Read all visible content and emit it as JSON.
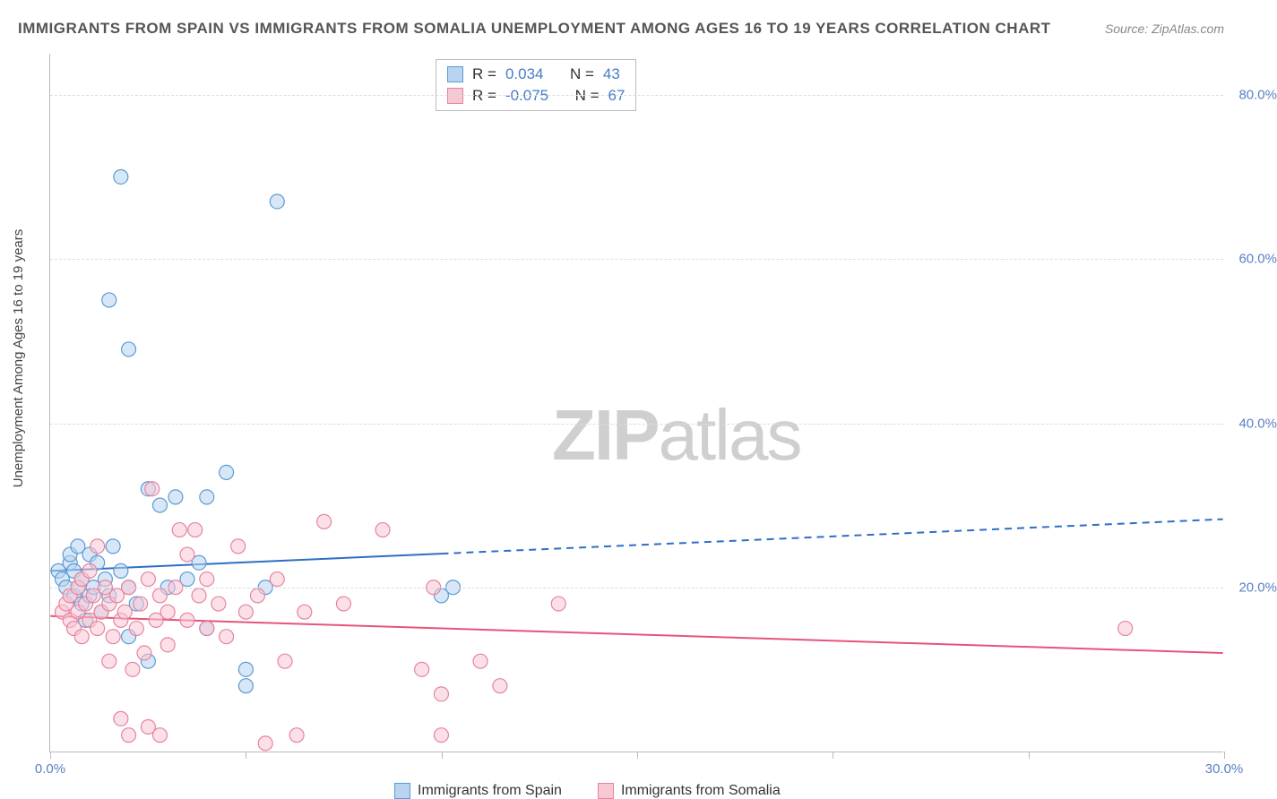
{
  "title": "IMMIGRANTS FROM SPAIN VS IMMIGRANTS FROM SOMALIA UNEMPLOYMENT AMONG AGES 16 TO 19 YEARS CORRELATION CHART",
  "source": "Source: ZipAtlas.com",
  "watermark_zip": "ZIP",
  "watermark_atlas": "atlas",
  "y_axis_label": "Unemployment Among Ages 16 to 19 years",
  "chart": {
    "type": "scatter",
    "xlim": [
      0,
      30
    ],
    "ylim": [
      0,
      85
    ],
    "x_ticks": [
      0,
      5,
      10,
      15,
      20,
      25,
      30
    ],
    "x_tick_labels": [
      "0.0%",
      "",
      "",
      "",
      "",
      "",
      "30.0%"
    ],
    "y_ticks": [
      20,
      40,
      60,
      80
    ],
    "y_tick_labels": [
      "20.0%",
      "40.0%",
      "60.0%",
      "80.0%"
    ],
    "series": [
      {
        "name": "Immigrants from Spain",
        "color_fill": "#b8d4f0",
        "color_stroke": "#5a9bd4",
        "marker_radius": 8,
        "fill_opacity": 0.55,
        "R": "0.034",
        "N": "43",
        "regression": {
          "slope": 0.21,
          "intercept": 22.0,
          "solid_xmax": 10,
          "dash_xmax": 30,
          "color": "#2e6fc4",
          "width": 2
        },
        "points": [
          [
            0.2,
            22
          ],
          [
            0.3,
            21
          ],
          [
            0.4,
            20
          ],
          [
            0.5,
            23
          ],
          [
            0.5,
            24
          ],
          [
            0.6,
            19
          ],
          [
            0.6,
            22
          ],
          [
            0.7,
            25
          ],
          [
            0.7,
            20
          ],
          [
            0.8,
            21
          ],
          [
            0.8,
            18
          ],
          [
            0.9,
            16
          ],
          [
            1.0,
            24
          ],
          [
            1.0,
            19
          ],
          [
            1.1,
            20
          ],
          [
            1.2,
            23
          ],
          [
            1.3,
            17
          ],
          [
            1.4,
            21
          ],
          [
            1.5,
            19
          ],
          [
            1.6,
            25
          ],
          [
            1.8,
            22
          ],
          [
            2.0,
            20
          ],
          [
            2.0,
            14
          ],
          [
            2.2,
            18
          ],
          [
            2.5,
            11
          ],
          [
            2.5,
            32
          ],
          [
            2.8,
            30
          ],
          [
            1.8,
            70
          ],
          [
            1.5,
            55
          ],
          [
            2.0,
            49
          ],
          [
            4.0,
            31
          ],
          [
            4.5,
            34
          ],
          [
            5.0,
            10
          ],
          [
            5.8,
            67
          ],
          [
            3.0,
            20
          ],
          [
            3.5,
            21
          ],
          [
            4.0,
            15
          ],
          [
            5.0,
            8
          ],
          [
            5.5,
            20
          ],
          [
            10.0,
            19
          ],
          [
            10.3,
            20
          ],
          [
            3.2,
            31
          ],
          [
            3.8,
            23
          ]
        ]
      },
      {
        "name": "Immigrants from Somalia",
        "color_fill": "#f7c7d4",
        "color_stroke": "#e6849f",
        "marker_radius": 8,
        "fill_opacity": 0.55,
        "R": "-0.075",
        "N": "67",
        "regression": {
          "slope": -0.15,
          "intercept": 16.5,
          "solid_xmax": 30,
          "dash_xmax": 30,
          "color": "#e6547a",
          "width": 2
        },
        "points": [
          [
            0.3,
            17
          ],
          [
            0.4,
            18
          ],
          [
            0.5,
            16
          ],
          [
            0.5,
            19
          ],
          [
            0.6,
            15
          ],
          [
            0.7,
            20
          ],
          [
            0.7,
            17
          ],
          [
            0.8,
            21
          ],
          [
            0.8,
            14
          ],
          [
            0.9,
            18
          ],
          [
            1.0,
            16
          ],
          [
            1.0,
            22
          ],
          [
            1.1,
            19
          ],
          [
            1.2,
            15
          ],
          [
            1.2,
            25
          ],
          [
            1.3,
            17
          ],
          [
            1.4,
            20
          ],
          [
            1.5,
            18
          ],
          [
            1.5,
            11
          ],
          [
            1.6,
            14
          ],
          [
            1.7,
            19
          ],
          [
            1.8,
            16
          ],
          [
            1.8,
            4
          ],
          [
            1.9,
            17
          ],
          [
            2.0,
            20
          ],
          [
            2.0,
            2
          ],
          [
            2.1,
            10
          ],
          [
            2.2,
            15
          ],
          [
            2.3,
            18
          ],
          [
            2.4,
            12
          ],
          [
            2.5,
            21
          ],
          [
            2.5,
            3
          ],
          [
            2.6,
            32
          ],
          [
            2.7,
            16
          ],
          [
            2.8,
            19
          ],
          [
            2.8,
            2
          ],
          [
            3.0,
            17
          ],
          [
            3.0,
            13
          ],
          [
            3.2,
            20
          ],
          [
            3.3,
            27
          ],
          [
            3.5,
            16
          ],
          [
            3.5,
            24
          ],
          [
            3.7,
            27
          ],
          [
            3.8,
            19
          ],
          [
            4.0,
            15
          ],
          [
            4.0,
            21
          ],
          [
            4.3,
            18
          ],
          [
            4.5,
            14
          ],
          [
            4.8,
            25
          ],
          [
            5.0,
            17
          ],
          [
            5.3,
            19
          ],
          [
            5.5,
            1
          ],
          [
            5.8,
            21
          ],
          [
            6.0,
            11
          ],
          [
            6.3,
            2
          ],
          [
            6.5,
            17
          ],
          [
            7.0,
            28
          ],
          [
            7.5,
            18
          ],
          [
            8.5,
            27
          ],
          [
            9.5,
            10
          ],
          [
            10.0,
            2
          ],
          [
            9.8,
            20
          ],
          [
            10.0,
            7
          ],
          [
            11.0,
            11
          ],
          [
            11.5,
            8
          ],
          [
            13.0,
            18
          ],
          [
            27.5,
            15
          ]
        ]
      }
    ],
    "background_color": "#ffffff",
    "grid_color": "#dddddd"
  },
  "stat_labels": {
    "R": "R =",
    "N": "N ="
  },
  "legend": {
    "series1": "Immigrants from Spain",
    "series2": "Immigrants from Somalia"
  }
}
